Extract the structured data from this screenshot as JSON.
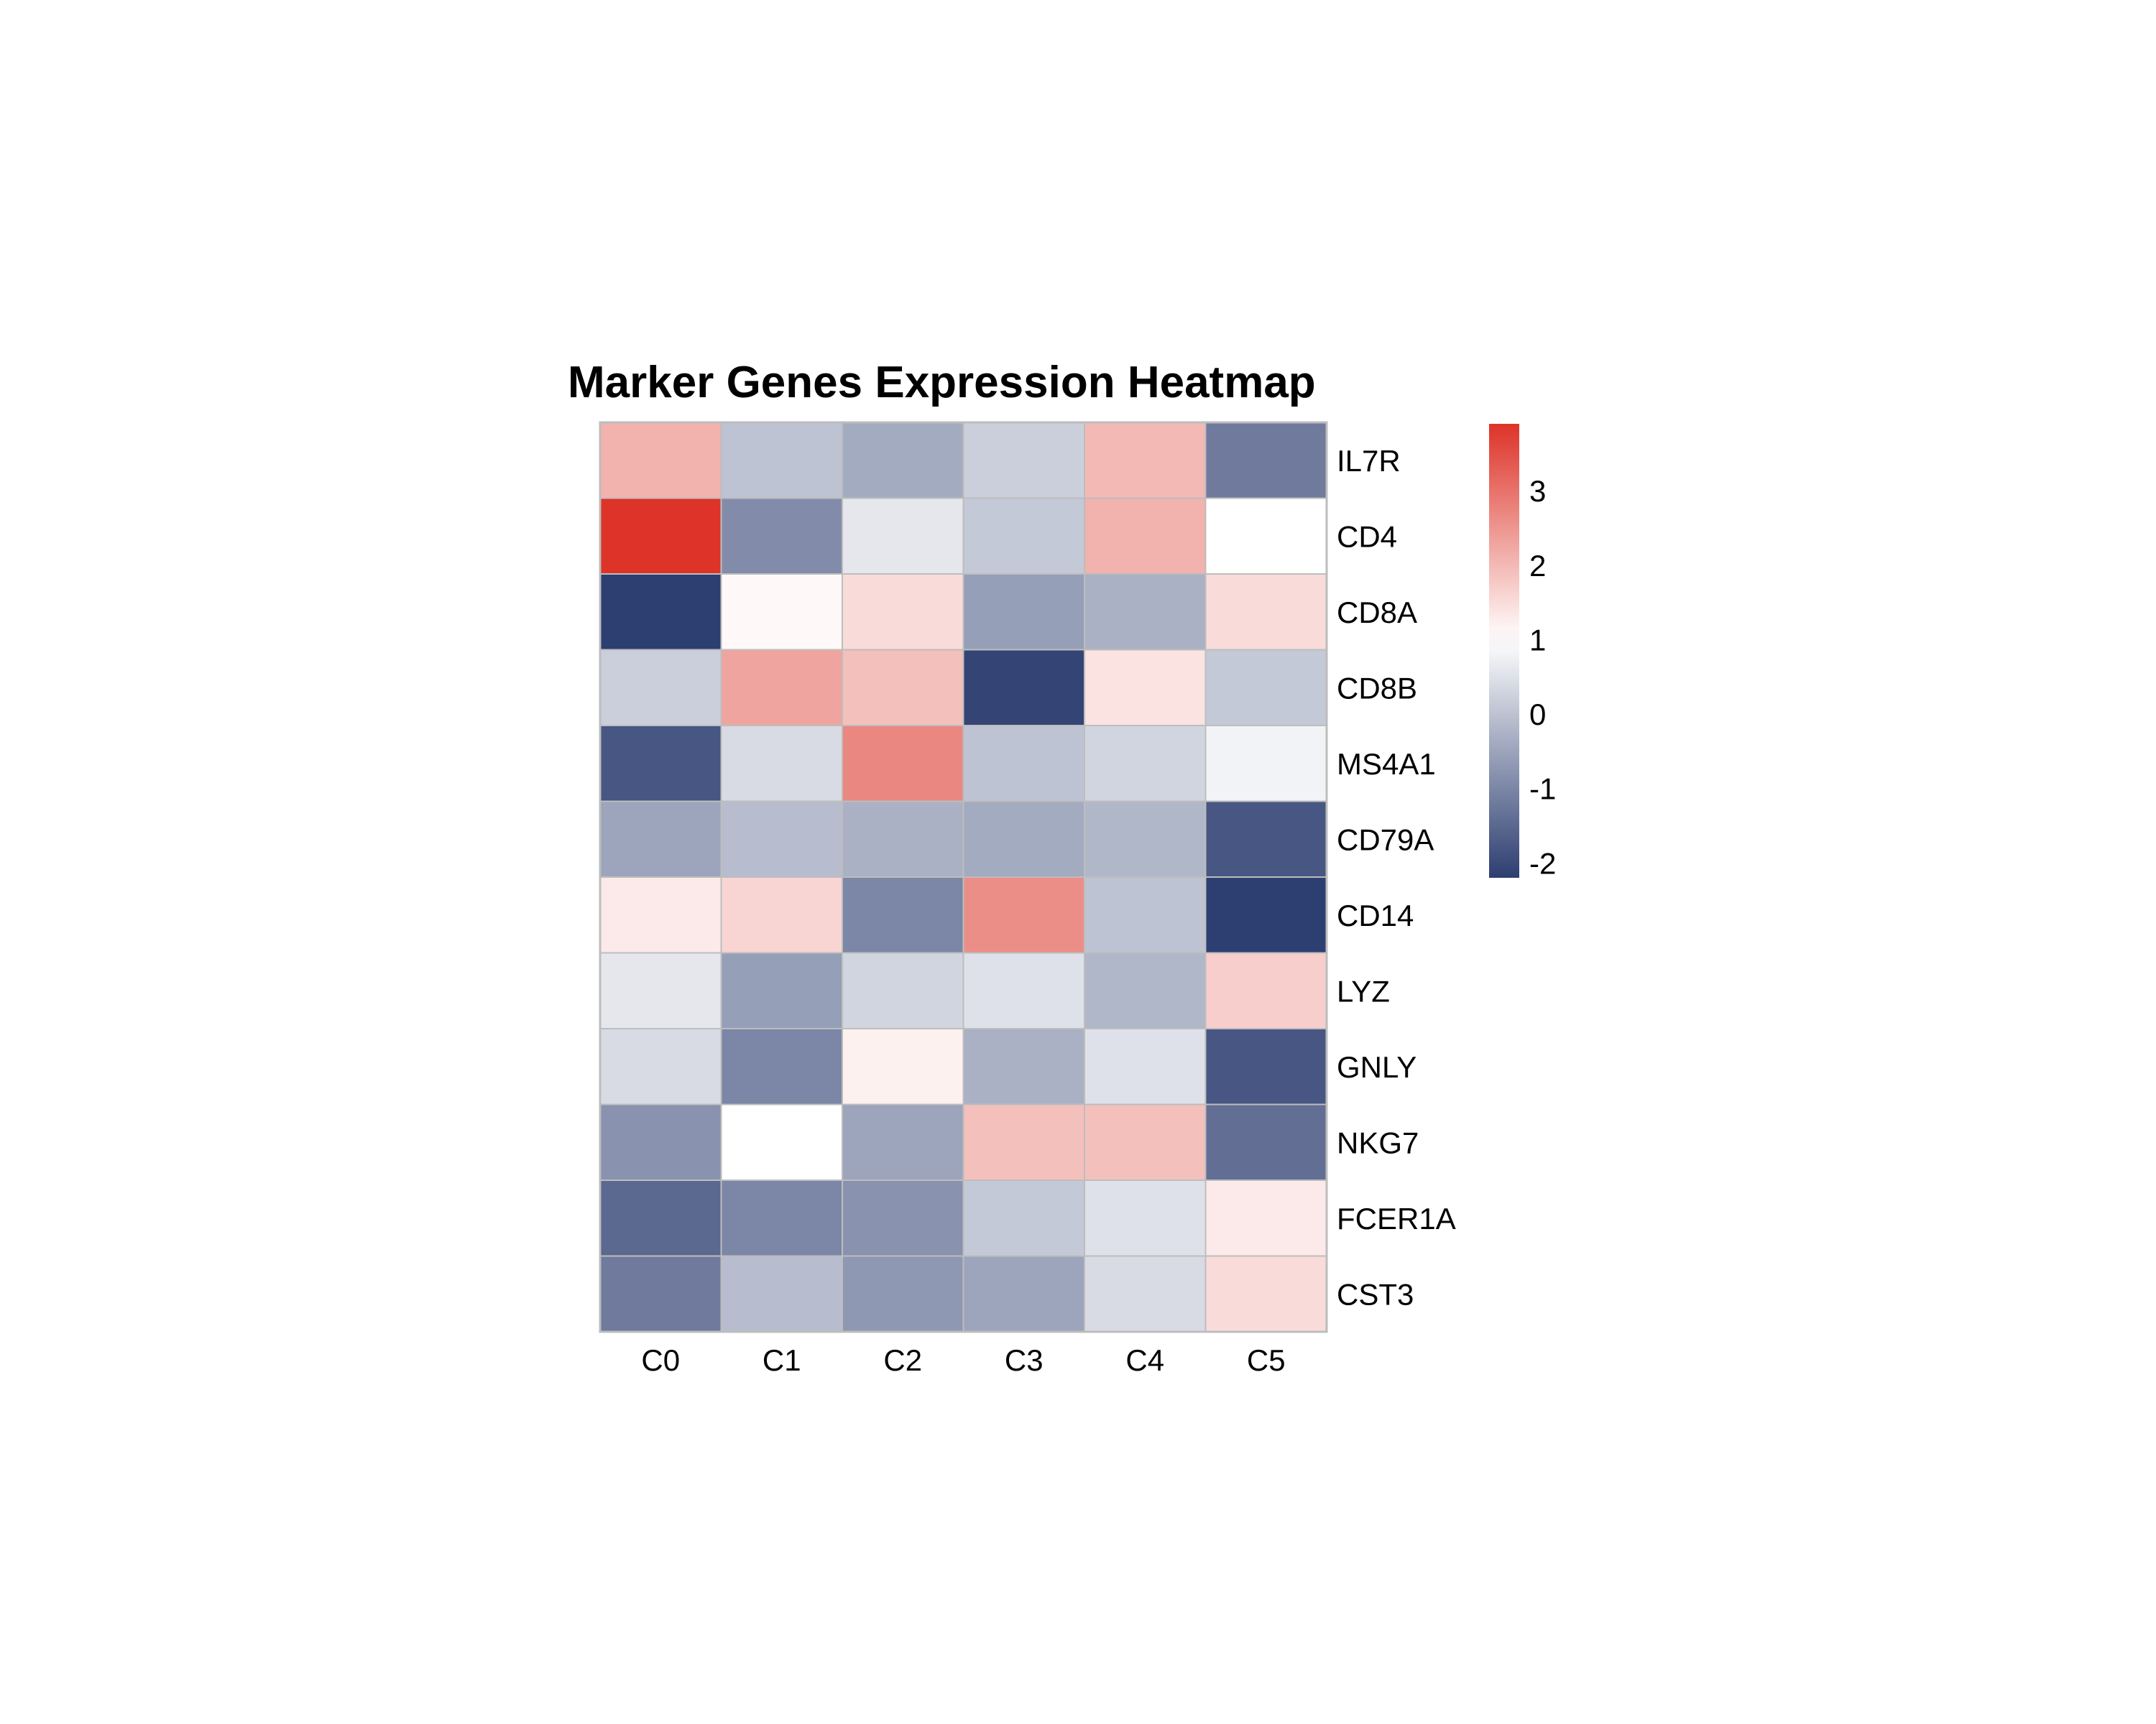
{
  "chart_data": {
    "type": "heatmap",
    "title": "Marker Genes Expression Heatmap",
    "columns": [
      "C0",
      "C1",
      "C2",
      "C3",
      "C4",
      "C5"
    ],
    "rows": [
      "IL7R",
      "CD4",
      "CD8A",
      "CD8B",
      "MS4A1",
      "CD79A",
      "CD14",
      "LYZ",
      "GNLY",
      "NKG7",
      "FCER1A",
      "CST3"
    ],
    "values": [
      [
        2.1,
        0.0,
        -0.4,
        0.2,
        2.0,
        -1.2
      ],
      [
        3.9,
        -0.9,
        0.6,
        0.1,
        2.1,
        1.0
      ],
      [
        -2.2,
        1.1,
        1.5,
        -0.6,
        -0.3,
        1.5
      ],
      [
        0.2,
        2.3,
        1.9,
        -2.1,
        1.4,
        0.1
      ],
      [
        -1.8,
        0.4,
        2.7,
        0.0,
        0.3,
        0.8
      ],
      [
        -0.5,
        -0.1,
        -0.3,
        -0.4,
        -0.2,
        -1.8
      ],
      [
        1.3,
        1.6,
        -1.0,
        2.6,
        0.0,
        -2.2
      ],
      [
        0.6,
        -0.6,
        0.3,
        0.5,
        -0.2,
        1.7
      ],
      [
        0.4,
        -1.0,
        1.2,
        -0.3,
        0.5,
        -1.8
      ],
      [
        -0.8,
        1.0,
        -0.5,
        1.9,
        1.9,
        -1.4
      ],
      [
        -1.5,
        -1.0,
        -0.8,
        0.1,
        0.5,
        1.3
      ],
      [
        -1.2,
        -0.1,
        -0.7,
        -0.5,
        0.4,
        1.5
      ]
    ],
    "colorbar": {
      "min": -2.2,
      "max": 3.9,
      "ticks": [
        -2,
        -1,
        0,
        1,
        2,
        3
      ],
      "colors": {
        "low": "#2d3e70",
        "mid": "#ffffff",
        "high": "#dd3328"
      }
    },
    "grid_color": "#bdbdbd"
  }
}
